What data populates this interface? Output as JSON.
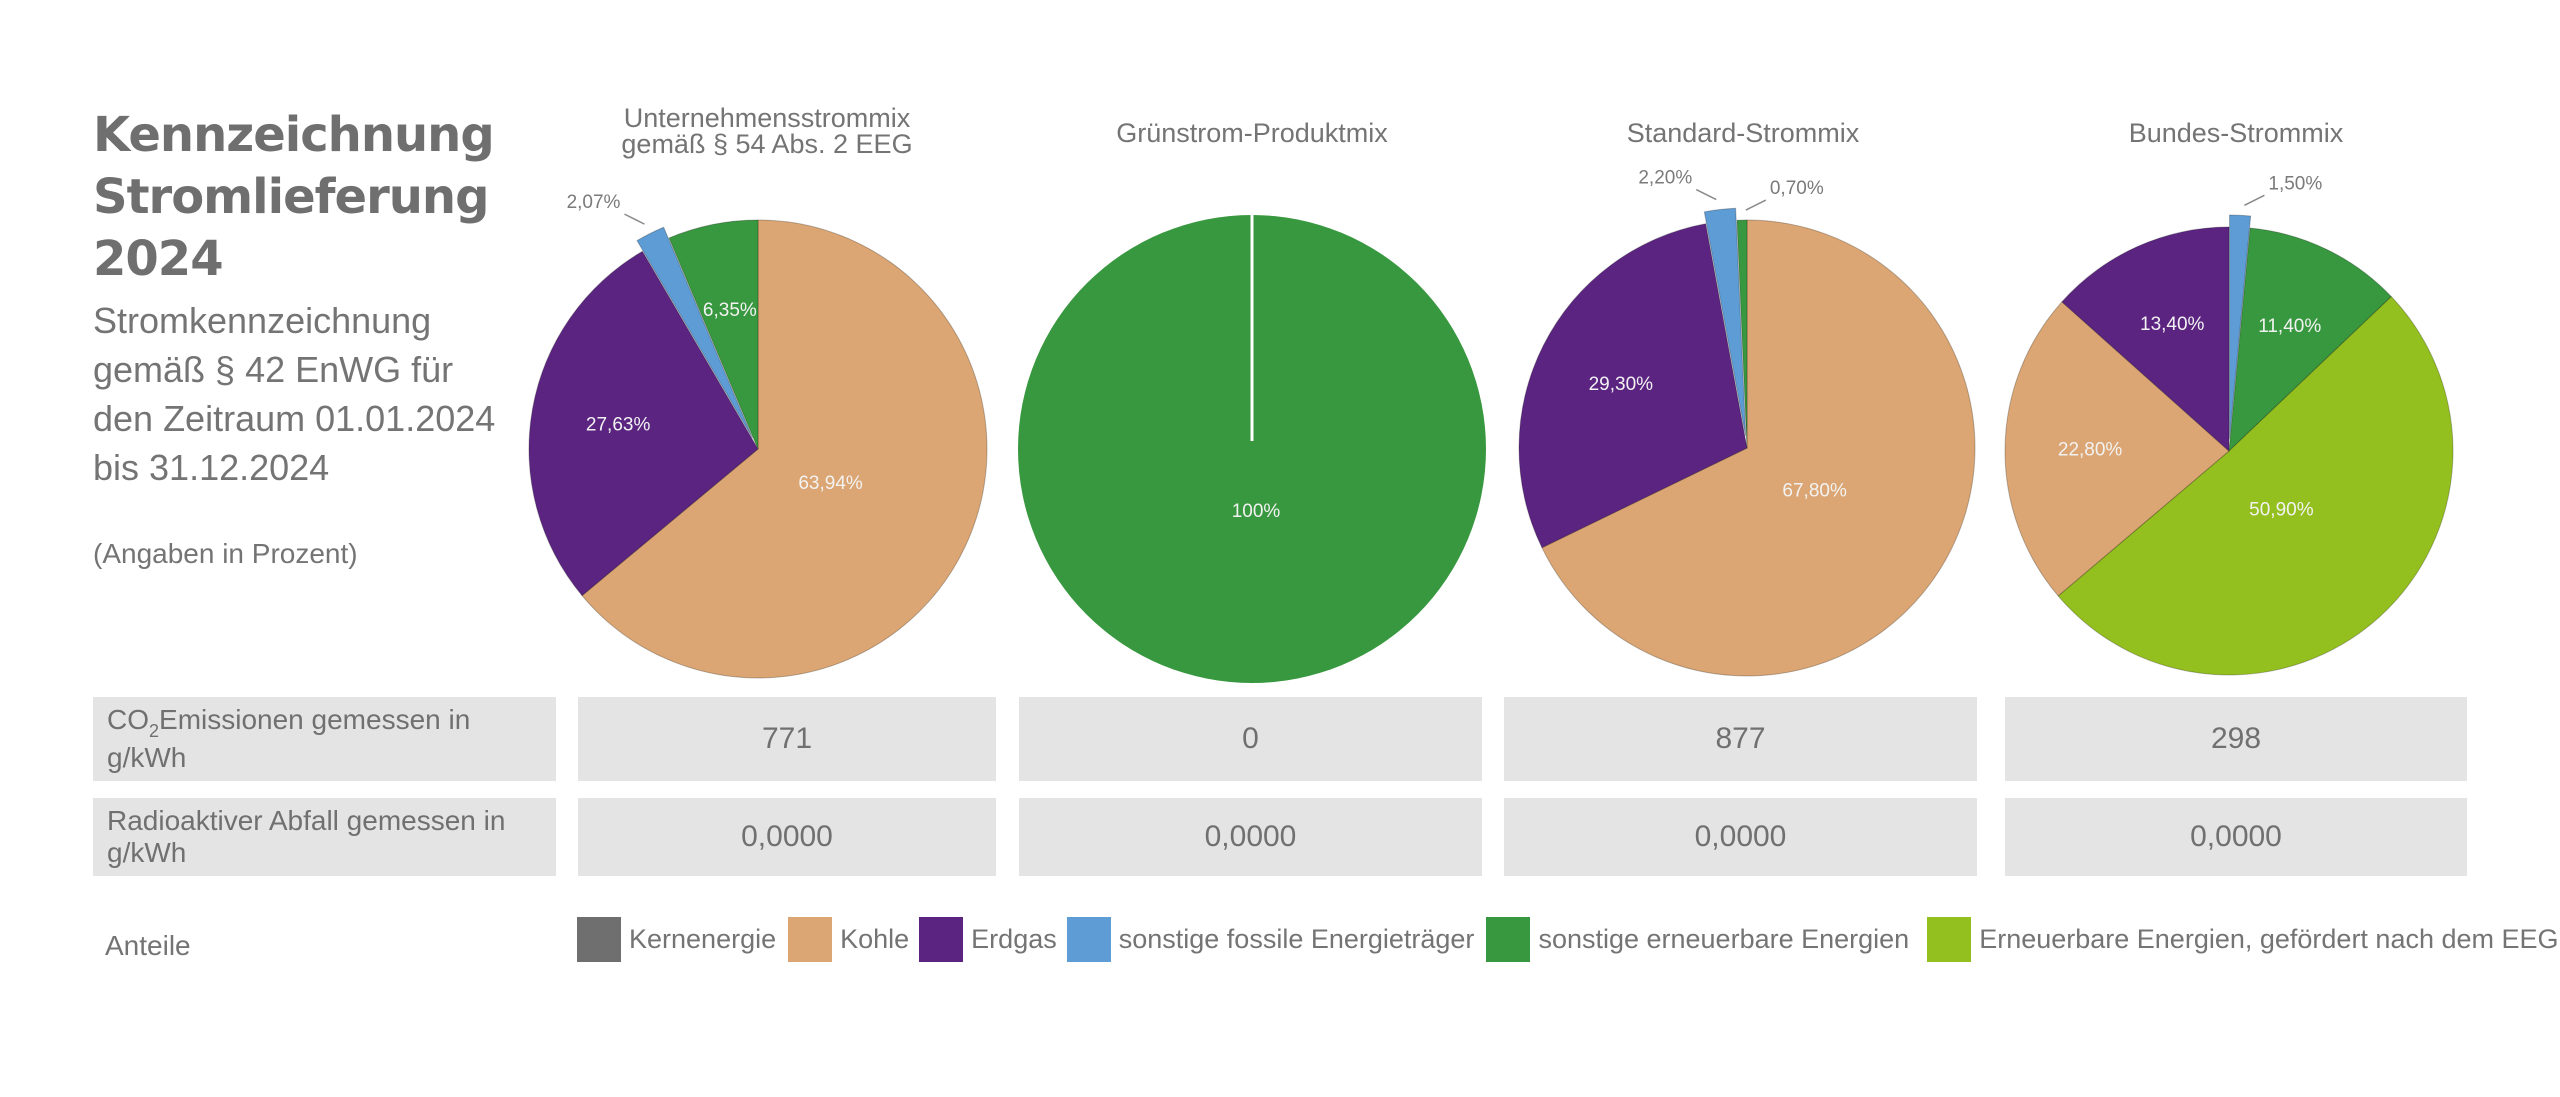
{
  "header": {
    "headline": [
      "Kennzeichnung",
      "Stromlieferung",
      "2024"
    ],
    "subtitle": "Stromkennzeichnung gemäß § 42 EnWG für den Zeitraum 01.01.2024 bis 31.12.2024",
    "note": "(Angaben in Prozent)"
  },
  "categories": [
    {
      "key": "kern",
      "label": "Kernenergie",
      "color": "#6f6f6f"
    },
    {
      "key": "kohle",
      "label": "Kohle",
      "color": "#dba673"
    },
    {
      "key": "erdgas",
      "label": "Erdgas",
      "color": "#5b2481"
    },
    {
      "key": "fossil",
      "label": "sonstige fossile Energieträger",
      "color": "#5e9cd6"
    },
    {
      "key": "erneuerbar",
      "label": "sonstige erneuerbare Energien",
      "color": "#38983f"
    },
    {
      "key": "eeg",
      "label": "Erneuerbare Energien, gefördert nach dem EEG",
      "color": "#94c01f"
    }
  ],
  "chart_data": [
    {
      "type": "pie",
      "title": "Unternehmensstrommix gemäß § 54 Abs. 2 EEG",
      "title_lines": [
        "Unternehmensstrommix",
        "gemäß § 54 Abs. 2 EEG"
      ],
      "slices": [
        {
          "category": "Kohle",
          "key": "kohle",
          "value": 63.94,
          "label": "63,94%",
          "exploded": false
        },
        {
          "category": "Erdgas",
          "key": "erdgas",
          "value": 27.63,
          "label": "27,63%",
          "exploded": false
        },
        {
          "category": "sonstige fossile Energieträger",
          "key": "fossil",
          "value": 2.07,
          "label": "2,07%",
          "exploded": true
        },
        {
          "category": "sonstige erneuerbare Energien",
          "key": "erneuerbar",
          "value": 6.35,
          "label": "6,35%",
          "exploded": false
        }
      ]
    },
    {
      "type": "pie",
      "title": "Grünstrom-Produktmix",
      "title_lines": [
        "Grünstrom-Produktmix"
      ],
      "slices": [
        {
          "category": "sonstige erneuerbare Energien",
          "key": "erneuerbar",
          "value": 100,
          "label": "100%",
          "exploded": false
        }
      ]
    },
    {
      "type": "pie",
      "title": "Standard-Strommix",
      "title_lines": [
        "Standard-Strommix"
      ],
      "slices": [
        {
          "category": "Kohle",
          "key": "kohle",
          "value": 67.8,
          "label": "67,80%",
          "exploded": false
        },
        {
          "category": "Erdgas",
          "key": "erdgas",
          "value": 29.3,
          "label": "29,30%",
          "exploded": false
        },
        {
          "category": "sonstige fossile Energieträger",
          "key": "fossil",
          "value": 2.2,
          "label": "2,20%",
          "exploded": true
        },
        {
          "category": "sonstige erneuerbare Energien",
          "key": "erneuerbar",
          "value": 0.7,
          "label": "0,70%",
          "exploded": false
        }
      ]
    },
    {
      "type": "pie",
      "title": "Bundes-Strommix",
      "title_lines": [
        "Bundes-Strommix"
      ],
      "slices": [
        {
          "category": "sonstige fossile Energieträger",
          "key": "fossil",
          "value": 1.5,
          "label": "1,50%",
          "exploded": true
        },
        {
          "category": "sonstige erneuerbare Energien",
          "key": "erneuerbar",
          "value": 11.4,
          "label": "11,40%",
          "exploded": false
        },
        {
          "category": "Erneuerbare Energien, gefördert nach dem EEG",
          "key": "eeg",
          "value": 50.9,
          "label": "50,90%",
          "exploded": false
        },
        {
          "category": "Kohle",
          "key": "kohle",
          "value": 22.8,
          "label": "22,80%",
          "exploded": false
        },
        {
          "category": "Erdgas",
          "key": "erdgas",
          "value": 13.4,
          "label": "13,40%",
          "exploded": false
        }
      ]
    }
  ],
  "table": {
    "rows": [
      {
        "label_prefix": "CO",
        "label_sub": "2",
        "label_rest": "Emissionen gemessen in g/kWh",
        "values": [
          "771",
          "0",
          "877",
          "298"
        ]
      },
      {
        "label_prefix": "Radioaktiver Abfall gemessen in g/kWh",
        "label_sub": "",
        "label_rest": "",
        "values": [
          "0,0000",
          "0,0000",
          "0,0000",
          "0,0000"
        ]
      }
    ]
  },
  "legend": {
    "title": "Anteile"
  }
}
